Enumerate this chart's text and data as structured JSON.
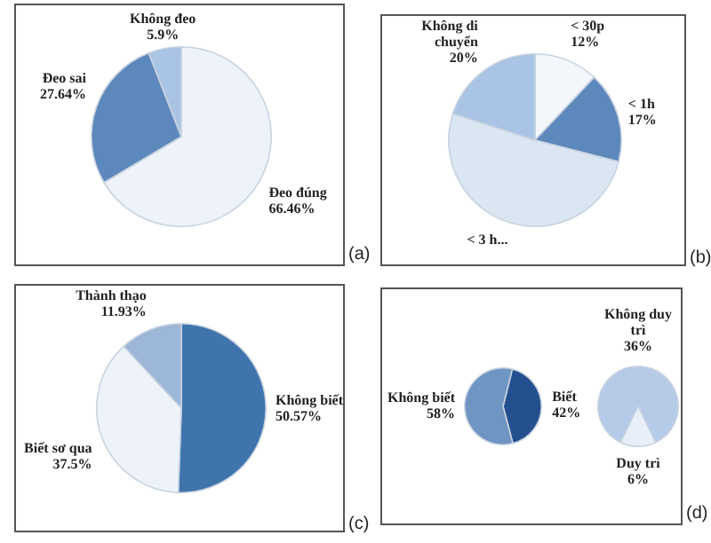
{
  "chart_data": [
    {
      "type": "pie",
      "categories": [
        "Đeo đúng",
        "Đeo sai",
        "Không đeo"
      ],
      "values": [
        66.46,
        27.64,
        5.9
      ],
      "colors": [
        "#eef3fa",
        "#5d88bb",
        "#a9c4e4"
      ],
      "value_labels": [
        "66.46%",
        "27.64%",
        "5.9%"
      ],
      "annotations": [
        "(a)"
      ]
    },
    {
      "type": "pie",
      "categories": [
        "< 30p",
        "< 1h",
        "< 3 h...",
        "Không di chuyển"
      ],
      "values": [
        12,
        17,
        51,
        20
      ],
      "colors": [
        "#f3f6fb",
        "#5d88bb",
        "#dbe6f3",
        "#a9c4e4"
      ],
      "value_labels": [
        "12%",
        "17%",
        null,
        "20%"
      ],
      "annotations": [
        "(b)"
      ]
    },
    {
      "type": "pie",
      "categories": [
        "Không biết",
        "Biết sơ qua",
        "Thành thạo"
      ],
      "values": [
        50.57,
        37.5,
        11.93
      ],
      "colors": [
        "#3f74ad",
        "#eef3fa",
        "#9db7d8"
      ],
      "value_labels": [
        "50.57%",
        "37.5%",
        "11.93%"
      ],
      "annotations": [
        "(c)"
      ]
    },
    {
      "type": "pie",
      "categories": [
        "Biết",
        "Không biết"
      ],
      "values": [
        42,
        58
      ],
      "colors": [
        "#24508f",
        "#6f95c3"
      ],
      "value_labels": [
        "42%",
        "58%"
      ],
      "annotations": [
        "(d)"
      ]
    },
    {
      "type": "pie",
      "categories": [
        "Không duy trì",
        "Duy trì"
      ],
      "values": [
        36,
        6
      ],
      "colors": [
        "#b5cbe8",
        "#e8eff8"
      ],
      "value_labels": [
        "36%",
        "6%"
      ]
    }
  ]
}
